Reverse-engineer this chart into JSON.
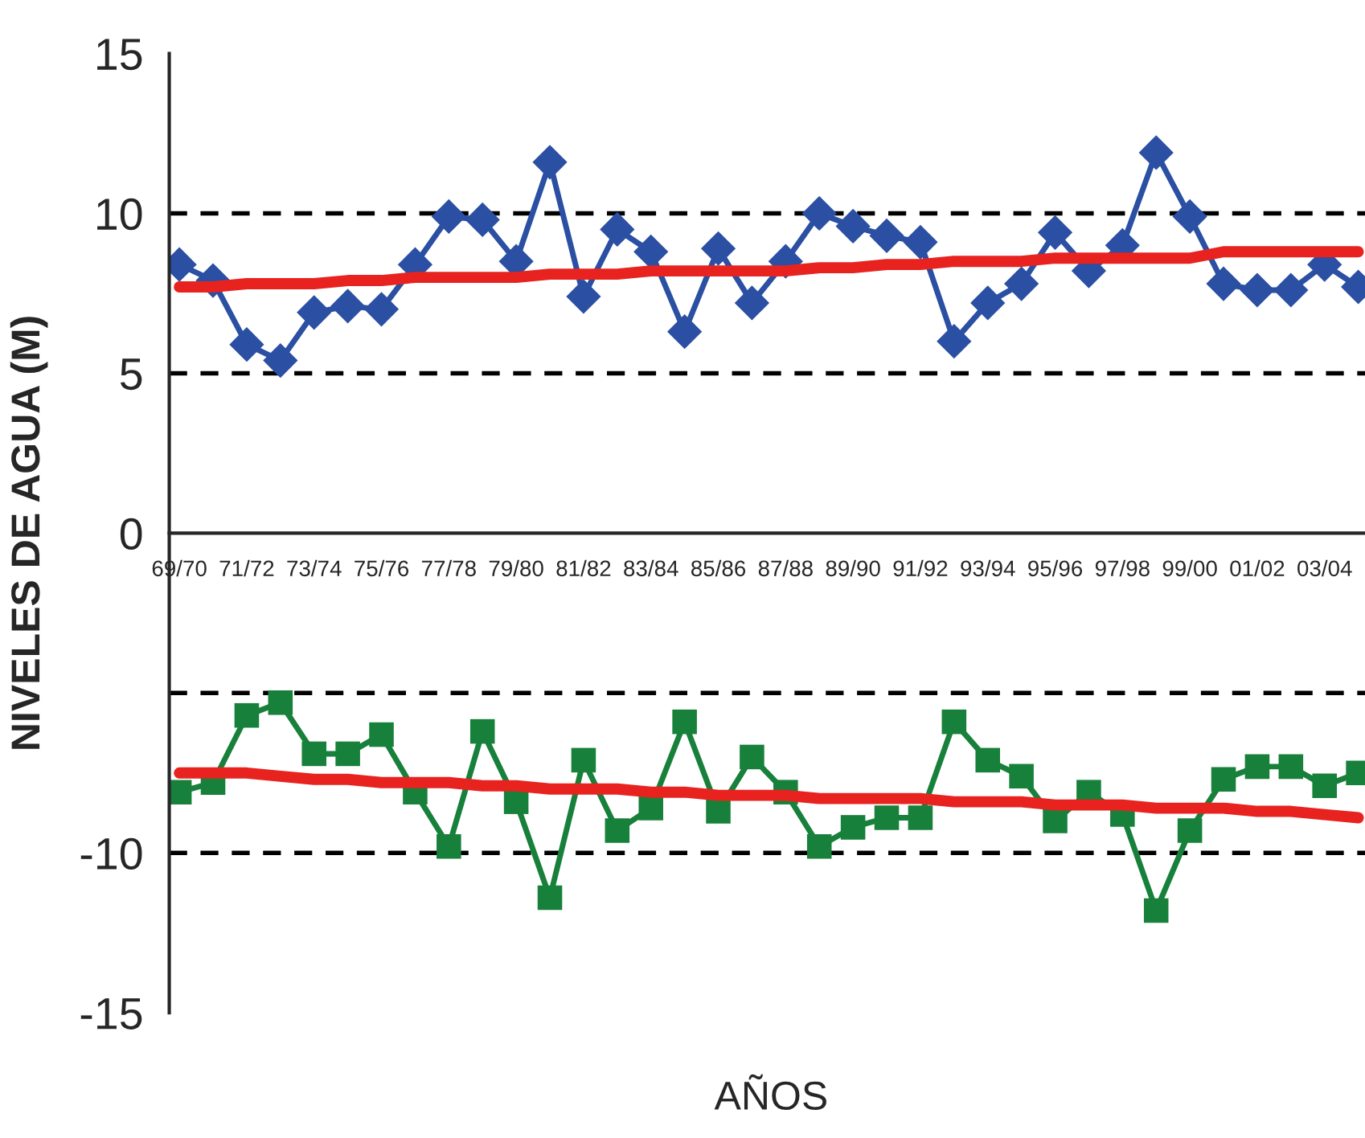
{
  "chart_data": {
    "type": "line",
    "xlabel": "AÑOS",
    "ylabel": "NIVELES DE AGUA (M)",
    "categories": [
      "69/70",
      null,
      "71/72",
      null,
      "73/74",
      null,
      "75/76",
      null,
      "77/78",
      null,
      "79/80",
      null,
      "81/82",
      null,
      "83/84",
      null,
      "85/86",
      null,
      "87/88",
      null,
      "89/90",
      null,
      "91/92",
      null,
      "93/94",
      null,
      "95/96",
      null,
      "97/98",
      null,
      "99/00",
      null,
      "01/02",
      null,
      "03/04",
      null
    ],
    "series": [
      {
        "color": "#2a4fa3",
        "marker": "diamond",
        "values": [
          8.4,
          7.9,
          5.9,
          5.4,
          6.9,
          7.1,
          7.0,
          8.4,
          9.9,
          9.8,
          8.5,
          11.6,
          7.4,
          9.5,
          8.8,
          6.3,
          8.9,
          7.2,
          8.5,
          10.0,
          9.6,
          9.3,
          9.1,
          6.0,
          7.2,
          7.8,
          9.4,
          8.2,
          9.0,
          11.9,
          9.9,
          7.8,
          7.6,
          7.6,
          8.4,
          7.7
        ]
      },
      {
        "color": "#e8231f",
        "marker": "none",
        "values": [
          7.7,
          7.7,
          7.8,
          7.8,
          7.8,
          7.9,
          7.9,
          8.0,
          8.0,
          8.0,
          8.0,
          8.1,
          8.1,
          8.1,
          8.2,
          8.2,
          8.2,
          8.2,
          8.2,
          8.3,
          8.3,
          8.4,
          8.4,
          8.5,
          8.5,
          8.5,
          8.6,
          8.6,
          8.6,
          8.6,
          8.6,
          8.8,
          8.8,
          8.8,
          8.8,
          8.8
        ]
      },
      {
        "color": "#17803a",
        "marker": "square",
        "values": [
          -8.1,
          -7.8,
          -5.7,
          -5.3,
          -6.9,
          -6.9,
          -6.3,
          -8.1,
          -9.8,
          -6.2,
          -8.4,
          -11.4,
          -7.1,
          -9.3,
          -8.6,
          -5.9,
          -8.7,
          -7.0,
          -8.1,
          -9.8,
          -9.2,
          -8.9,
          -8.9,
          -5.9,
          -7.1,
          -7.6,
          -9.0,
          -8.1,
          -8.8,
          -11.8,
          -9.3,
          -7.7,
          -7.3,
          -7.3,
          -7.9,
          -7.5
        ]
      },
      {
        "color": "#e8231f",
        "marker": "none",
        "values": [
          -7.5,
          -7.5,
          -7.5,
          -7.6,
          -7.7,
          -7.7,
          -7.8,
          -7.8,
          -7.8,
          -7.9,
          -7.9,
          -8.0,
          -8.0,
          -8.0,
          -8.1,
          -8.1,
          -8.2,
          -8.2,
          -8.2,
          -8.3,
          -8.3,
          -8.3,
          -8.3,
          -8.4,
          -8.4,
          -8.4,
          -8.5,
          -8.5,
          -8.5,
          -8.6,
          -8.6,
          -8.6,
          -8.7,
          -8.7,
          -8.8,
          -8.9
        ]
      }
    ],
    "ylim": [
      -15,
      15
    ],
    "yticks": [
      -15,
      -10,
      0,
      5,
      10,
      15
    ],
    "ref_lines": [
      {
        "axis": "y",
        "value": 10,
        "color": "#000000",
        "line_style": "dashed"
      },
      {
        "axis": "y",
        "value": 5,
        "color": "#000000",
        "line_style": "dashed"
      },
      {
        "axis": "y",
        "value": -5,
        "color": "#000000",
        "line_style": "dashed"
      },
      {
        "axis": "y",
        "value": -10,
        "color": "#000000",
        "line_style": "dashed"
      }
    ],
    "grid": false,
    "legend": false
  }
}
